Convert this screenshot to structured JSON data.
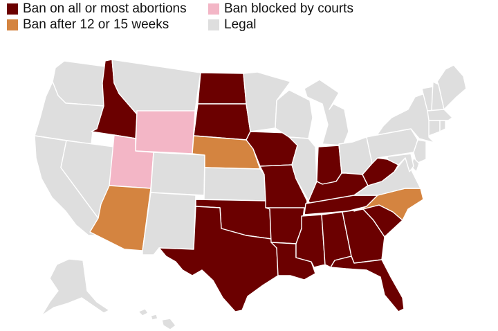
{
  "legend": [
    {
      "key": "ban",
      "label": "Ban on all or most abortions"
    },
    {
      "key": "weeks",
      "label": "Ban after 12 or 15 weeks"
    },
    {
      "key": "blocked",
      "label": "Ban blocked by courts"
    },
    {
      "key": "legal",
      "label": "Legal"
    }
  ],
  "colors": {
    "ban": "#6b0000",
    "weeks": "#d48440",
    "blocked": "#f3b6c6",
    "legal": "#dedede"
  },
  "states": [
    {
      "id": "WA",
      "status": "legal"
    },
    {
      "id": "OR",
      "status": "legal"
    },
    {
      "id": "CA",
      "status": "legal"
    },
    {
      "id": "NV",
      "status": "legal"
    },
    {
      "id": "ID",
      "status": "ban"
    },
    {
      "id": "MT",
      "status": "legal"
    },
    {
      "id": "WY",
      "status": "blocked"
    },
    {
      "id": "UT",
      "status": "blocked"
    },
    {
      "id": "AZ",
      "status": "weeks"
    },
    {
      "id": "CO",
      "status": "legal"
    },
    {
      "id": "NM",
      "status": "legal"
    },
    {
      "id": "ND",
      "status": "ban"
    },
    {
      "id": "SD",
      "status": "ban"
    },
    {
      "id": "NE",
      "status": "weeks"
    },
    {
      "id": "KS",
      "status": "legal"
    },
    {
      "id": "OK",
      "status": "ban"
    },
    {
      "id": "TX",
      "status": "ban"
    },
    {
      "id": "MN",
      "status": "legal"
    },
    {
      "id": "IA",
      "status": "ban"
    },
    {
      "id": "MO",
      "status": "ban"
    },
    {
      "id": "AR",
      "status": "ban"
    },
    {
      "id": "LA",
      "status": "ban"
    },
    {
      "id": "WI",
      "status": "legal"
    },
    {
      "id": "IL",
      "status": "legal"
    },
    {
      "id": "MI",
      "status": "legal"
    },
    {
      "id": "IN",
      "status": "ban"
    },
    {
      "id": "OH",
      "status": "legal"
    },
    {
      "id": "KY",
      "status": "ban"
    },
    {
      "id": "TN",
      "status": "ban"
    },
    {
      "id": "MS",
      "status": "ban"
    },
    {
      "id": "AL",
      "status": "ban"
    },
    {
      "id": "GA",
      "status": "ban"
    },
    {
      "id": "FL",
      "status": "ban"
    },
    {
      "id": "SC",
      "status": "ban"
    },
    {
      "id": "NC",
      "status": "weeks"
    },
    {
      "id": "VA",
      "status": "legal"
    },
    {
      "id": "WV",
      "status": "ban"
    },
    {
      "id": "PA",
      "status": "legal"
    },
    {
      "id": "NY",
      "status": "legal"
    },
    {
      "id": "VT",
      "status": "legal"
    },
    {
      "id": "NH",
      "status": "legal"
    },
    {
      "id": "ME",
      "status": "legal"
    },
    {
      "id": "MA",
      "status": "legal"
    },
    {
      "id": "CT",
      "status": "legal"
    },
    {
      "id": "RI",
      "status": "legal"
    },
    {
      "id": "NJ",
      "status": "legal"
    },
    {
      "id": "DE",
      "status": "legal"
    },
    {
      "id": "MD",
      "status": "legal"
    },
    {
      "id": "AK",
      "status": "legal"
    },
    {
      "id": "HI",
      "status": "legal"
    }
  ]
}
